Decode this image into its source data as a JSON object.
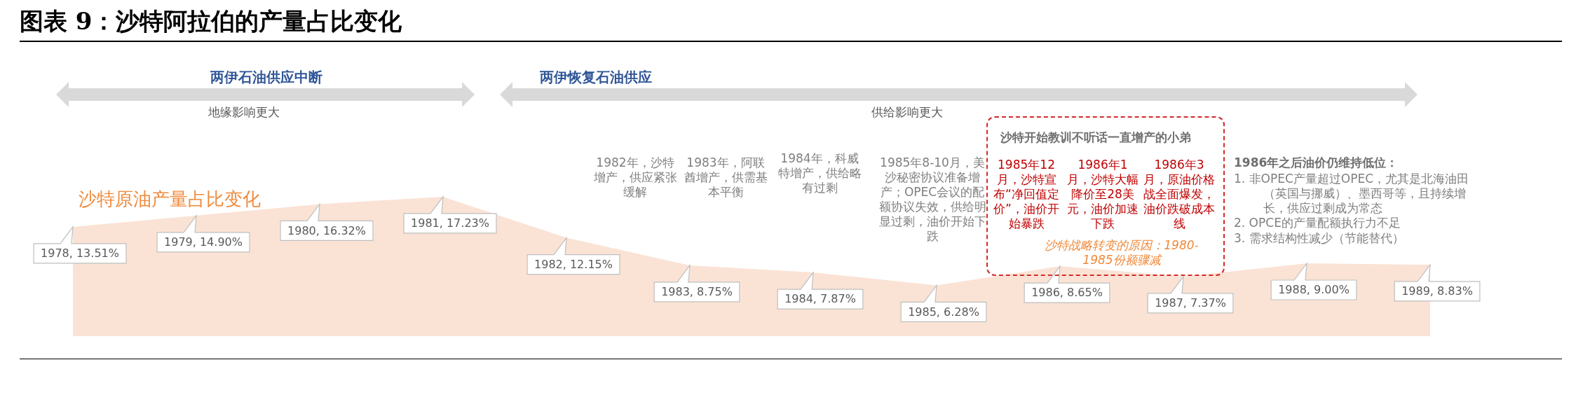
{
  "chart_data": {
    "type": "area",
    "title": "图表 9：沙特阿拉伯的产量占比变化",
    "categories": [
      null,
      null,
      null,
      null,
      null,
      null,
      null,
      null,
      null,
      null,
      null,
      null
    ],
    "series": [
      {
        "name": "沙特原油产量占比变化",
        "color": "#fae3d5",
        "values": [
          13.51,
          14.9,
          16.32,
          17.23,
          12.15,
          8.75,
          7.87,
          6.28,
          8.65,
          7.37,
          9.0,
          8.83
        ],
        "value_labels": [
          "1978, 13.51%",
          "1979, 14.90%",
          "1980, 16.32%",
          "1981, 17.23%",
          "1982, 12.15%",
          "1983, 8.75%",
          "1984, 7.87%",
          "1985, 6.28%",
          "1986, 8.65%",
          "1987, 7.37%",
          "1988, 9.00%",
          "1989, 8.83%"
        ]
      }
    ],
    "tick_labels": false,
    "marker": "none",
    "annotations": [
      "两伊石油供应中断",
      "地缘影响更大",
      "两伊恢复石油供应",
      "供给影响更大",
      "1982年，沙特增产，供应紧张缓解",
      "1983年，阿联酋增产，供需基本平衡",
      "1984年，科威特增产，供给略有过剩",
      "1985年8-10月，美沙秘密协议准备增产；OPEC会议的配额协议失效，供给明显过剩，油价开始下跌",
      "沙特开始教训不听话一直增产的小弟",
      "1985年12月，沙特宣布“净回值定价”，油价开始暴跌",
      "1986年1月，沙特大幅降价至28美元，油价加速下跌",
      "1986年3月，原油价格战全面爆发，油价跌破成本线",
      "沙特战略转变的原因：1980-1985份额骤减",
      "1986年之后油价仍维持低位：",
      "1.  非OPEC产量超过OPEC，尤其是北海油田（英国与挪威）、墨西哥等，且持续增长，供应过剩成为常态",
      "2.  OPCE的产量配额执行力不足",
      "3.  需求结构性减少（节能替代）"
    ]
  }
}
